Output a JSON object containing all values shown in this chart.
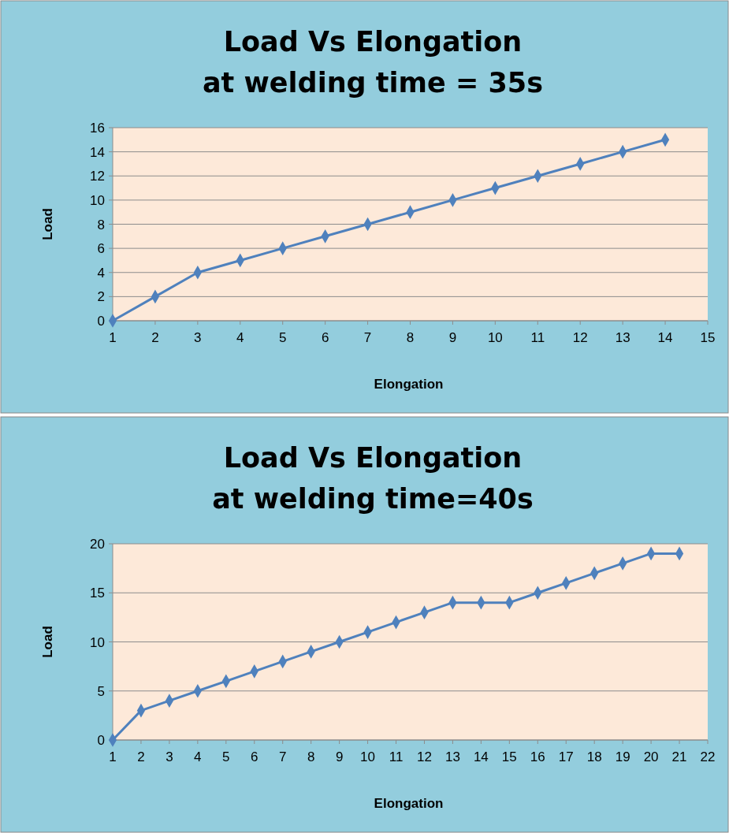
{
  "chart_data": [
    {
      "type": "line",
      "title": "Load Vs Elongation\nat welding time = 35s",
      "xlabel": "Elongation",
      "ylabel": "Load",
      "x": [
        1,
        2,
        3,
        4,
        5,
        6,
        7,
        8,
        9,
        10,
        11,
        12,
        13,
        14
      ],
      "xlim": [
        1,
        15
      ],
      "xticks": [
        1,
        2,
        3,
        4,
        5,
        6,
        7,
        8,
        9,
        10,
        11,
        12,
        13,
        14,
        15
      ],
      "ylim": [
        0,
        16
      ],
      "yticks": [
        0,
        2,
        4,
        6,
        8,
        10,
        12,
        14,
        16
      ],
      "grid": "y",
      "marker": "diamond",
      "line_style": "solid",
      "series": [
        {
          "color": "#4f81bd",
          "values": [
            0,
            2,
            4,
            5,
            6,
            7,
            8,
            9,
            10,
            11,
            12,
            13,
            14,
            15
          ]
        }
      ]
    },
    {
      "type": "line",
      "title": "Load Vs Elongation\nat welding time=40s",
      "xlabel": "Elongation",
      "ylabel": "Load",
      "x": [
        1,
        2,
        3,
        4,
        5,
        6,
        7,
        8,
        9,
        10,
        11,
        12,
        13,
        14,
        15,
        16,
        17,
        18,
        19,
        20,
        21
      ],
      "xlim": [
        1,
        22
      ],
      "xticks": [
        1,
        2,
        3,
        4,
        5,
        6,
        7,
        8,
        9,
        10,
        11,
        12,
        13,
        14,
        15,
        16,
        17,
        18,
        19,
        20,
        21,
        22
      ],
      "ylim": [
        0,
        20
      ],
      "yticks": [
        0,
        5,
        10,
        15,
        20
      ],
      "grid": "y",
      "marker": "diamond",
      "line_style": "solid",
      "series": [
        {
          "color": "#4f81bd",
          "values": [
            0,
            3,
            4,
            5,
            6,
            7,
            8,
            9,
            10,
            11,
            12,
            13,
            14,
            14,
            14,
            15,
            16,
            17,
            18,
            19,
            19
          ]
        }
      ]
    }
  ]
}
